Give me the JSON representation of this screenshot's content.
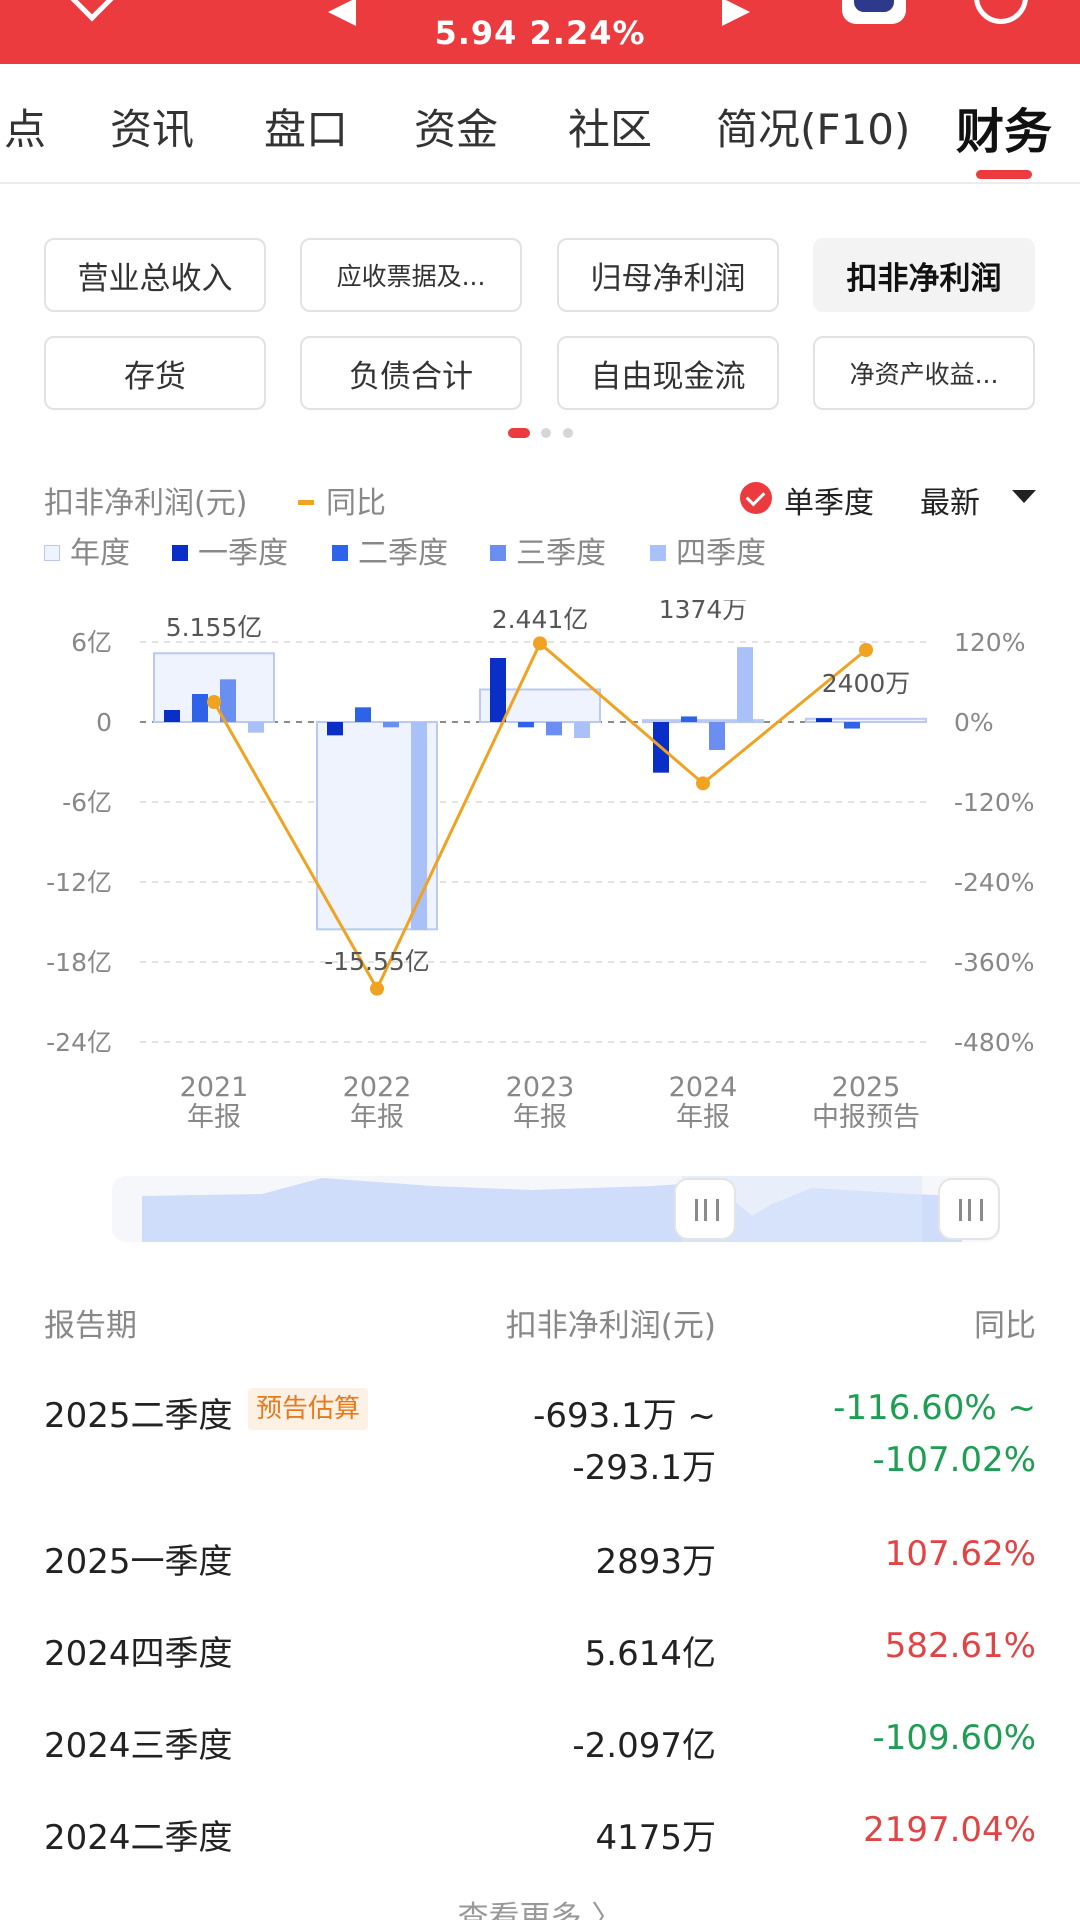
{
  "header": {
    "price_change": "5.94 2.24%"
  },
  "tabs": [
    {
      "label": "点"
    },
    {
      "label": "资讯"
    },
    {
      "label": "盘口"
    },
    {
      "label": "资金"
    },
    {
      "label": "社区"
    },
    {
      "label": "简况(F10)"
    },
    {
      "label": "财务",
      "active": true
    }
  ],
  "metrics": [
    {
      "label": "营业总收入"
    },
    {
      "label": "应收票据及..."
    },
    {
      "label": "归母净利润"
    },
    {
      "label": "扣非净利润",
      "selected": true
    },
    {
      "label": "存货"
    },
    {
      "label": "负债合计"
    },
    {
      "label": "自由现金流"
    },
    {
      "label": "净资产收益..."
    }
  ],
  "chart_header": {
    "title": "扣非净利润(元)",
    "yoy_label": "同比",
    "single_quarter_label": "单季度",
    "latest_label": "最新"
  },
  "legend": [
    {
      "label": "年度",
      "color": "#eef3fd"
    },
    {
      "label": "一季度",
      "color": "#0a2fc7"
    },
    {
      "label": "二季度",
      "color": "#2e62e9"
    },
    {
      "label": "三季度",
      "color": "#6b8ff0"
    },
    {
      "label": "四季度",
      "color": "#a9c0f8"
    }
  ],
  "chart_data": {
    "type": "bar",
    "title": "扣非净利润(元)",
    "categories": [
      "2021 年报",
      "2022 年报",
      "2023 年报",
      "2024 年报",
      "2025 中报预告"
    ],
    "category_lines": [
      [
        "2021",
        "年报"
      ],
      [
        "2022",
        "年报"
      ],
      [
        "2023",
        "年报"
      ],
      [
        "2024",
        "年报"
      ],
      [
        "2025",
        "中报预告"
      ]
    ],
    "y_unit": "亿",
    "ylim": [
      -24,
      6
    ],
    "yticks": [
      "6亿",
      "0",
      "-6亿",
      "-12亿",
      "-18亿",
      "-24亿"
    ],
    "y2lim": [
      -480,
      120
    ],
    "y2ticks": [
      "120%",
      "0%",
      "-120%",
      "-240%",
      "-360%",
      "-480%"
    ],
    "series": [
      {
        "name": "年度",
        "values": [
          5.155,
          -15.55,
          2.441,
          0.1374,
          0.24
        ]
      },
      {
        "name": "一季度",
        "values": [
          0.9,
          -1.0,
          4.8,
          -3.8,
          0.2893
        ]
      },
      {
        "name": "二季度",
        "values": [
          2.1,
          1.1,
          -0.4,
          0.4175,
          -0.49
        ]
      },
      {
        "name": "三季度",
        "values": [
          3.2,
          -0.4,
          -1.0,
          -2.097,
          null
        ]
      },
      {
        "name": "四季度",
        "values": [
          -0.8,
          -15.6,
          -1.2,
          5.614,
          null
        ]
      },
      {
        "name": "同比",
        "axis": "right",
        "values": [
          30,
          -400,
          118,
          -92,
          108
        ]
      }
    ],
    "annotations": [
      "5.155亿",
      "-15.55亿",
      "2.441亿",
      "1374万",
      "2400万"
    ],
    "grid": true
  },
  "table": {
    "headers": {
      "period": "报告期",
      "value": "扣非净利润(元)",
      "yoy": "同比"
    },
    "forecast_badge": "预告估算",
    "rows": [
      {
        "period": "2025二季度",
        "value_line1": "-693.1万 ~",
        "value_line2": "-293.1万",
        "yoy_line1": "-116.60% ~",
        "yoy_line2": "-107.02%",
        "trend": "down"
      },
      {
        "period": "2025一季度",
        "value_line1": "2893万",
        "yoy_line1": "107.62%",
        "trend": "up"
      },
      {
        "period": "2024四季度",
        "value_line1": "5.614亿",
        "yoy_line1": "582.61%",
        "trend": "up"
      },
      {
        "period": "2024三季度",
        "value_line1": "-2.097亿",
        "yoy_line1": "-109.60%",
        "trend": "down"
      },
      {
        "period": "2024二季度",
        "value_line1": "4175万",
        "yoy_line1": "2197.04%",
        "trend": "up"
      }
    ],
    "more_label": "查看更多 〉"
  }
}
